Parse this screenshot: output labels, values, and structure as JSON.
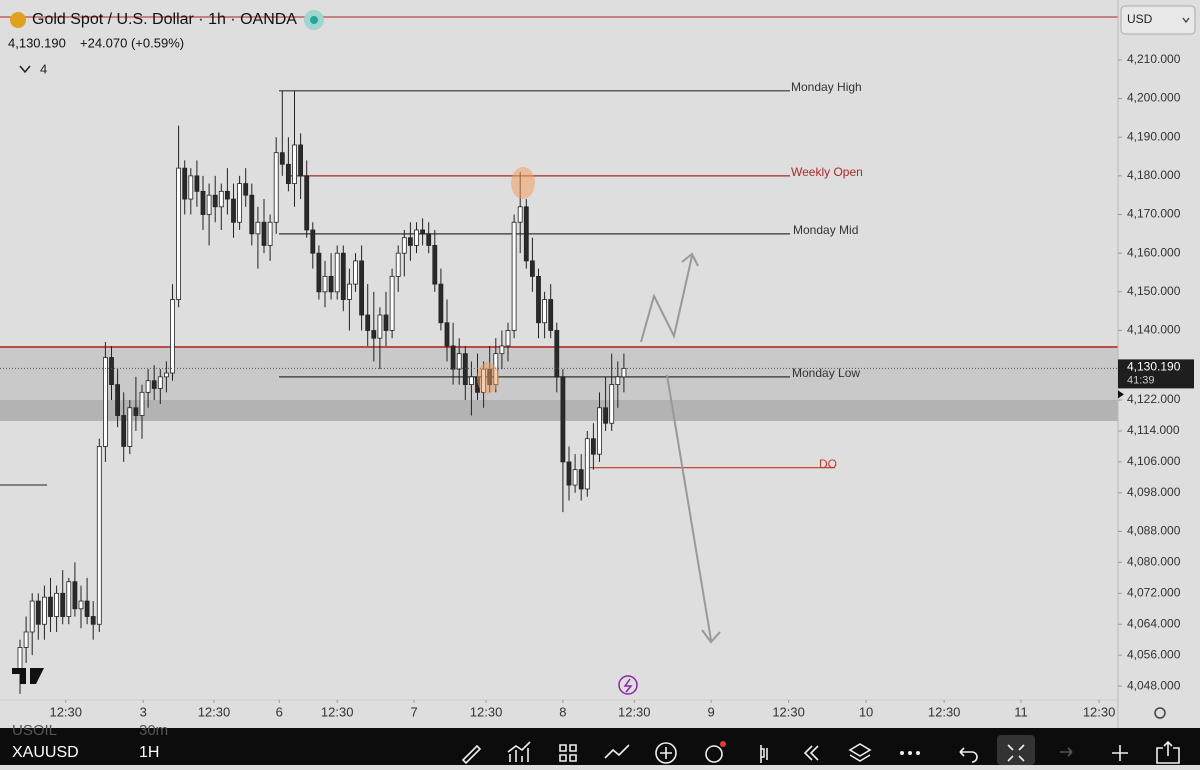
{
  "header": {
    "symbol_title": "Gold Spot / U.S. Dollar · 1h · OANDA",
    "change": "+24.070 (+0.59%)",
    "indicators_count": "4"
  },
  "currency": "USD",
  "chart_data": {
    "type": "candlestick",
    "x": [
      0,
      1,
      2,
      3,
      4,
      5,
      6,
      7,
      8,
      9,
      10,
      11,
      12,
      13,
      14,
      15,
      16,
      17,
      18,
      19,
      20,
      21,
      22,
      23,
      24,
      25,
      26,
      27,
      28,
      29,
      30,
      31,
      32,
      33,
      34,
      35,
      36,
      37,
      38,
      39,
      40,
      41,
      42,
      43,
      44,
      45,
      46,
      47,
      48,
      49,
      50,
      51,
      52,
      53,
      54,
      55,
      56,
      57,
      58,
      59,
      60,
      61,
      62,
      63,
      64,
      65,
      66,
      67,
      68,
      69,
      70,
      71,
      72,
      73,
      74,
      75,
      76,
      77,
      78,
      79,
      80,
      81,
      82,
      83,
      84,
      85,
      86,
      87,
      88,
      89,
      90,
      91,
      92,
      93,
      94,
      95,
      96,
      97,
      98,
      99
    ],
    "open": [
      4052,
      4058,
      4062,
      4070,
      4064,
      4071,
      4066,
      4072,
      4066,
      4075,
      4068,
      4070,
      4066,
      4064,
      4110,
      4133,
      4126,
      4118,
      4110,
      4120,
      4118,
      4124,
      4127,
      4125,
      4128,
      4129,
      4148,
      4182,
      4174,
      4180,
      4176,
      4170,
      4175,
      4172,
      4176,
      4174,
      4168,
      4178,
      4175,
      4165,
      4168,
      4162,
      4168,
      4186,
      4183,
      4178,
      4188,
      4180,
      4166,
      4160,
      4150,
      4154,
      4150,
      4160,
      4148,
      4152,
      4158,
      4144,
      4140,
      4138,
      4144,
      4140,
      4154,
      4160,
      4164,
      4162,
      4166,
      4165,
      4162,
      4152,
      4142,
      4136,
      4130,
      4134,
      4126,
      4128,
      4124,
      4130,
      4126,
      4134,
      4136,
      4140,
      4168,
      4172,
      4158,
      4154,
      4142,
      4148,
      4140,
      4128,
      4106,
      4100,
      4104,
      4099,
      4112,
      4108,
      4120,
      4116,
      4126,
      4128
    ],
    "high": [
      4060,
      4066,
      4072,
      4072,
      4074,
      4076,
      4074,
      4078,
      4076,
      4080,
      4074,
      4076,
      4070,
      4112,
      4137,
      4136,
      4130,
      4124,
      4122,
      4128,
      4126,
      4130,
      4131,
      4130,
      4132,
      4152,
      4193,
      4184,
      4182,
      4184,
      4180,
      4178,
      4180,
      4178,
      4182,
      4178,
      4180,
      4182,
      4178,
      4172,
      4174,
      4170,
      4190,
      4202,
      4190,
      4202,
      4191,
      4184,
      4168,
      4162,
      4158,
      4160,
      4162,
      4162,
      4156,
      4160,
      4162,
      4152,
      4150,
      4146,
      4150,
      4156,
      4162,
      4166,
      4168,
      4168,
      4169,
      4168,
      4166,
      4156,
      4148,
      4142,
      4138,
      4136,
      4132,
      4134,
      4132,
      4136,
      4138,
      4140,
      4142,
      4170,
      4181,
      4174,
      4164,
      4156,
      4150,
      4152,
      4142,
      4130,
      4110,
      4108,
      4108,
      4114,
      4116,
      4124,
      4128,
      4134,
      4132,
      4134
    ],
    "low": [
      4046,
      4054,
      4056,
      4060,
      4060,
      4062,
      4062,
      4064,
      4064,
      4066,
      4063,
      4064,
      4060,
      4062,
      4106,
      4122,
      4115,
      4106,
      4108,
      4114,
      4112,
      4120,
      4122,
      4121,
      4124,
      4127,
      4146,
      4170,
      4170,
      4172,
      4166,
      4162,
      4168,
      4166,
      4170,
      4164,
      4166,
      4172,
      4162,
      4156,
      4160,
      4158,
      4165,
      4180,
      4176,
      4172,
      4174,
      4164,
      4156,
      4148,
      4146,
      4148,
      4148,
      4145,
      4140,
      4150,
      4140,
      4136,
      4132,
      4130,
      4136,
      4138,
      4150,
      4154,
      4158,
      4160,
      4162,
      4160,
      4150,
      4140,
      4132,
      4126,
      4126,
      4122,
      4118,
      4122,
      4120,
      4124,
      4124,
      4130,
      4132,
      4138,
      4160,
      4156,
      4150,
      4138,
      4138,
      4138,
      4124,
      4093,
      4096,
      4098,
      4096,
      4097,
      4104,
      4106,
      4114,
      4114,
      4120,
      4124
    ],
    "close": [
      4058,
      4062,
      4070,
      4064,
      4071,
      4066,
      4072,
      4066,
      4075,
      4068,
      4070,
      4066,
      4064,
      4110,
      4133,
      4126,
      4118,
      4110,
      4120,
      4118,
      4124,
      4127,
      4125,
      4128,
      4129,
      4148,
      4182,
      4174,
      4180,
      4176,
      4170,
      4175,
      4172,
      4176,
      4174,
      4168,
      4178,
      4175,
      4165,
      4168,
      4162,
      4168,
      4186,
      4183,
      4178,
      4188,
      4180,
      4166,
      4160,
      4150,
      4154,
      4150,
      4160,
      4148,
      4152,
      4158,
      4144,
      4140,
      4138,
      4144,
      4140,
      4154,
      4160,
      4164,
      4162,
      4166,
      4165,
      4162,
      4152,
      4142,
      4136,
      4130,
      4134,
      4126,
      4128,
      4124,
      4130,
      4126,
      4134,
      4136,
      4140,
      4168,
      4172,
      4158,
      4154,
      4142,
      4148,
      4140,
      4128,
      4106,
      4100,
      4104,
      4099,
      4112,
      4108,
      4120,
      4116,
      4126,
      4128,
      4130.19
    ],
    "xlim": [
      0,
      180
    ],
    "xticks": [
      {
        "value": 7.5,
        "label": "12:30"
      },
      {
        "value": 20.2,
        "label": "3"
      },
      {
        "value": 31.8,
        "label": "12:30"
      },
      {
        "value": 42.5,
        "label": "6"
      },
      {
        "value": 52,
        "label": "12:30"
      },
      {
        "value": 64.6,
        "label": "7"
      },
      {
        "value": 76.4,
        "label": "12:30"
      },
      {
        "value": 89,
        "label": "8"
      },
      {
        "value": 100.7,
        "label": "12:30"
      },
      {
        "value": 113.3,
        "label": "9"
      },
      {
        "value": 126,
        "label": "12:30"
      },
      {
        "value": 138.7,
        "label": "10"
      },
      {
        "value": 151.5,
        "label": "12:30"
      },
      {
        "value": 164.1,
        "label": "11"
      },
      {
        "value": 176.9,
        "label": "12:30"
      }
    ],
    "ylim": [
      4044.4,
      4225.5
    ],
    "yticks": [
      {
        "value": 4048,
        "label": "4,048.000"
      },
      {
        "value": 4056,
        "label": "4,056.000"
      },
      {
        "value": 4064,
        "label": "4,064.000"
      },
      {
        "value": 4072,
        "label": "4,072.000"
      },
      {
        "value": 4080,
        "label": "4,080.000"
      },
      {
        "value": 4088,
        "label": "4,088.000"
      },
      {
        "value": 4098,
        "label": "4,098.000"
      },
      {
        "value": 4106,
        "label": "4,106.000"
      },
      {
        "value": 4114,
        "label": "4,114.000"
      },
      {
        "value": 4122,
        "label": "4,122.000"
      },
      {
        "value": 4140,
        "label": "4,140.000"
      },
      {
        "value": 4150,
        "label": "4,150.000"
      },
      {
        "value": 4160,
        "label": "4,160.000"
      },
      {
        "value": 4170,
        "label": "4,170.000"
      },
      {
        "value": 4180,
        "label": "4,180.000"
      },
      {
        "value": 4190,
        "label": "4,190.000"
      },
      {
        "value": 4200,
        "label": "4,200.000"
      },
      {
        "value": 4210,
        "label": "4,210.000"
      }
    ],
    "last_price": {
      "value": 4130.19,
      "label": "4,130.190"
    },
    "countdown": "41:39",
    "up_color": "#ffffff",
    "down_color": "#2a2a2a",
    "levels": [
      {
        "label": "Monday High",
        "price": 4202,
        "color": "#333333"
      },
      {
        "label": "Weekly Open",
        "price": 4180,
        "color": "#a52a2a"
      },
      {
        "label": "Monday Mid",
        "price": 4165,
        "color": "#333333"
      },
      {
        "label": "Monday Low",
        "price": 4128,
        "color": "#333333"
      },
      {
        "label": "DO",
        "price": 4104.5,
        "color": "#c0392b"
      }
    ]
  },
  "toolbar": {
    "symbol": "XAUUSD",
    "interval": "1H",
    "prev_symbol": "USOIL",
    "prev_interval": "30m"
  }
}
